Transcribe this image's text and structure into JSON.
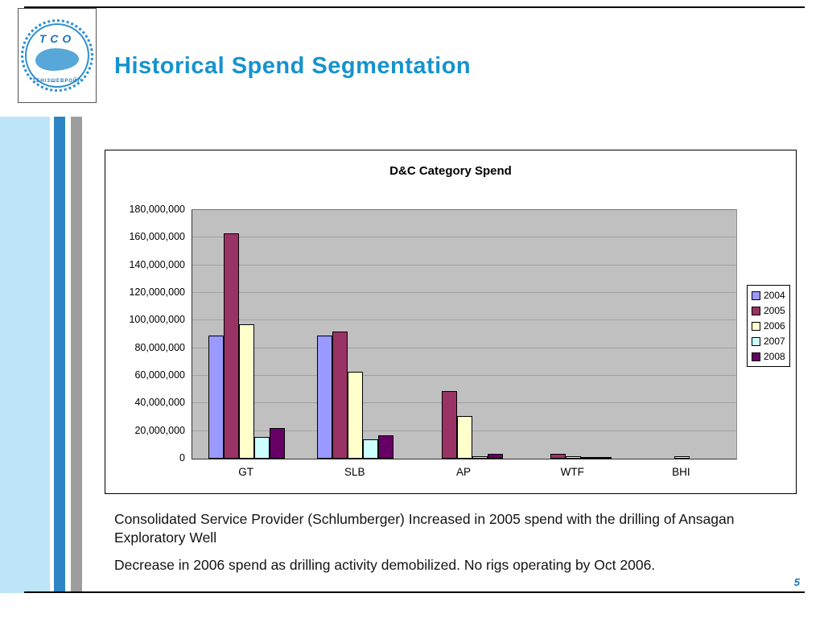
{
  "slide": {
    "title": "Historical Spend Segmentation",
    "page_number": "5",
    "notes": [
      "Consolidated Service Provider (Schlumberger) Increased in 2005 spend with the drilling of Ansagan Exploratory Well",
      "Decrease in 2006 spend as drilling activity demobilized.  No rigs operating by Oct 2006."
    ],
    "accent_color": "#1593CE"
  },
  "logo": {
    "letters": "TCO",
    "ring_text": "ТЕНІЗШЕВРОЙЛ"
  },
  "chart_data": {
    "type": "bar",
    "title": "D&C Category Spend",
    "categories": [
      "GT",
      "SLB",
      "AP",
      "WTF",
      "BHI"
    ],
    "series": [
      {
        "name": "2004",
        "color": "#9999FF",
        "values": [
          89000000,
          89000000,
          0,
          0,
          0
        ]
      },
      {
        "name": "2005",
        "color": "#993366",
        "values": [
          163000000,
          92000000,
          49000000,
          3500000,
          0
        ]
      },
      {
        "name": "2006",
        "color": "#FFFFCC",
        "values": [
          97000000,
          63000000,
          31000000,
          2000000,
          1500000
        ]
      },
      {
        "name": "2007",
        "color": "#CCFFFF",
        "values": [
          16000000,
          14000000,
          1500000,
          1000000,
          0
        ]
      },
      {
        "name": "2008",
        "color": "#660066",
        "values": [
          22000000,
          17000000,
          3500000,
          500000,
          0
        ]
      }
    ],
    "ylim": [
      0,
      180000000
    ],
    "ytick_step": 20000000,
    "ylabel": "",
    "xlabel": "",
    "grid": true,
    "legend_position": "right",
    "plot_bg": "#C0C0C0"
  }
}
